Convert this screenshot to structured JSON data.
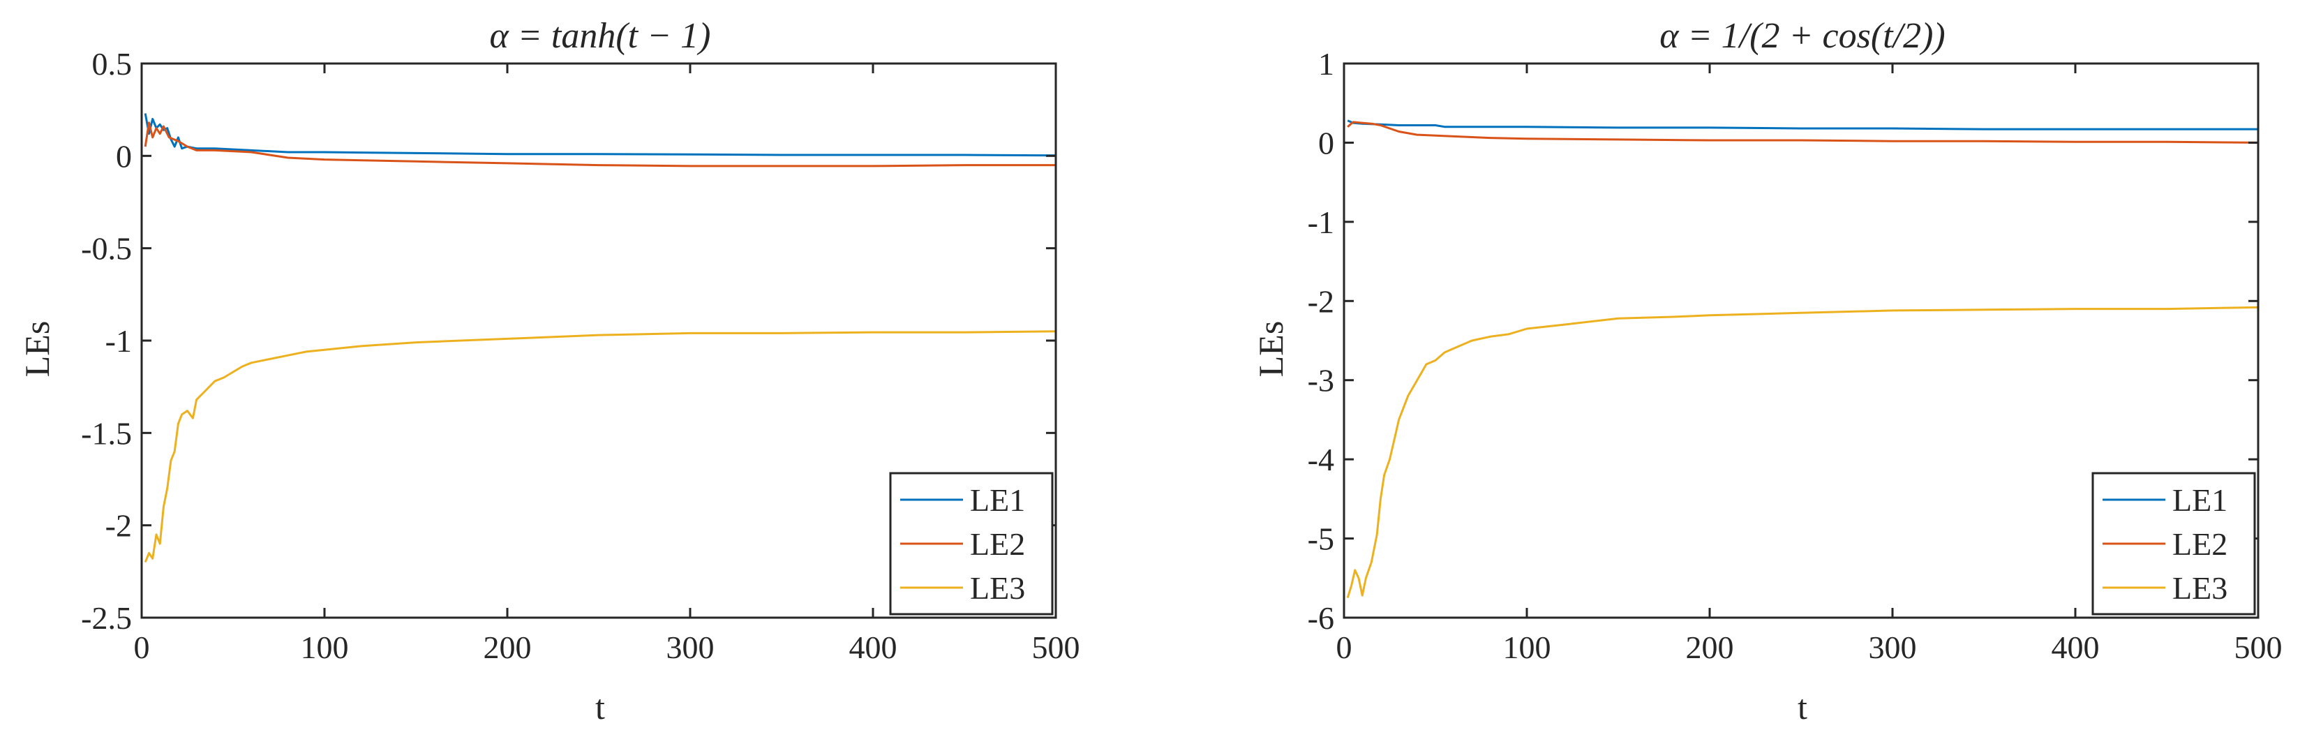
{
  "chart_data": [
    {
      "type": "line",
      "title": "α = tanh(t − 1)",
      "xlabel": "t",
      "ylabel": "LEs",
      "xlim": [
        0,
        500
      ],
      "ylim": [
        -2.5,
        0.5
      ],
      "xticks": [
        0,
        100,
        200,
        300,
        400,
        500
      ],
      "xtick_labels": [
        "0",
        "100",
        "200",
        "300",
        "400",
        "500"
      ],
      "yticks": [
        0.5,
        0,
        -0.5,
        -1,
        -1.5,
        -2,
        -2.5
      ],
      "ytick_labels": [
        "0.5",
        "0",
        "-0.5",
        "-1",
        "-1.5",
        "-2",
        "-2.5"
      ],
      "legend_position": "bottom-right",
      "series": [
        {
          "name": "LE1",
          "color": "#0072BD",
          "x": [
            2,
            4,
            6,
            8,
            10,
            12,
            14,
            16,
            18,
            20,
            22,
            25,
            30,
            40,
            60,
            80,
            100,
            150,
            200,
            250,
            300,
            350,
            400,
            450,
            500
          ],
          "y": [
            0.23,
            0.12,
            0.2,
            0.15,
            0.17,
            0.14,
            0.15,
            0.09,
            0.05,
            0.1,
            0.04,
            0.05,
            0.04,
            0.04,
            0.03,
            0.02,
            0.02,
            0.015,
            0.01,
            0.01,
            0.008,
            0.005,
            0.005,
            0.005,
            0.002
          ]
        },
        {
          "name": "LE2",
          "color": "#D95319",
          "x": [
            2,
            4,
            6,
            8,
            10,
            12,
            15,
            20,
            25,
            30,
            40,
            60,
            80,
            100,
            150,
            200,
            250,
            300,
            350,
            400,
            450,
            500
          ],
          "y": [
            0.05,
            0.18,
            0.1,
            0.15,
            0.12,
            0.16,
            0.1,
            0.08,
            0.05,
            0.03,
            0.03,
            0.02,
            -0.01,
            -0.02,
            -0.03,
            -0.04,
            -0.05,
            -0.055,
            -0.055,
            -0.055,
            -0.05,
            -0.05
          ]
        },
        {
          "name": "LE3",
          "color": "#EDB120",
          "x": [
            2,
            4,
            6,
            8,
            10,
            12,
            14,
            16,
            18,
            20,
            22,
            25,
            28,
            30,
            35,
            40,
            45,
            50,
            55,
            60,
            70,
            80,
            90,
            100,
            120,
            150,
            200,
            250,
            300,
            350,
            400,
            450,
            500
          ],
          "y": [
            -2.2,
            -2.15,
            -2.18,
            -2.05,
            -2.1,
            -1.9,
            -1.8,
            -1.65,
            -1.6,
            -1.45,
            -1.4,
            -1.38,
            -1.42,
            -1.32,
            -1.27,
            -1.22,
            -1.2,
            -1.17,
            -1.14,
            -1.12,
            -1.1,
            -1.08,
            -1.06,
            -1.05,
            -1.03,
            -1.01,
            -0.99,
            -0.97,
            -0.96,
            -0.96,
            -0.955,
            -0.955,
            -0.95
          ]
        }
      ]
    },
    {
      "type": "line",
      "title": "α = 1/(2 + cos(t/2))",
      "xlabel": "t",
      "ylabel": "LEs",
      "xlim": [
        0,
        500
      ],
      "ylim": [
        -6,
        1
      ],
      "xticks": [
        0,
        100,
        200,
        300,
        400,
        500
      ],
      "xtick_labels": [
        "0",
        "100",
        "200",
        "300",
        "400",
        "500"
      ],
      "yticks": [
        1,
        0,
        -1,
        -2,
        -3,
        -4,
        -5,
        -6
      ],
      "ytick_labels": [
        "1",
        "0",
        "-1",
        "-2",
        "-3",
        "-4",
        "-5",
        "-6"
      ],
      "legend_position": "bottom-right",
      "series": [
        {
          "name": "LE1",
          "color": "#0072BD",
          "x": [
            2,
            5,
            10,
            20,
            30,
            50,
            55,
            80,
            100,
            150,
            200,
            250,
            300,
            350,
            400,
            450,
            500
          ],
          "y": [
            0.28,
            0.25,
            0.24,
            0.23,
            0.22,
            0.22,
            0.2,
            0.2,
            0.2,
            0.19,
            0.19,
            0.18,
            0.18,
            0.17,
            0.17,
            0.17,
            0.17
          ]
        },
        {
          "name": "LE2",
          "color": "#D95319",
          "x": [
            2,
            5,
            10,
            15,
            20,
            25,
            30,
            40,
            60,
            80,
            100,
            150,
            200,
            250,
            300,
            350,
            400,
            450,
            500
          ],
          "y": [
            0.2,
            0.26,
            0.25,
            0.24,
            0.22,
            0.18,
            0.14,
            0.1,
            0.08,
            0.06,
            0.05,
            0.04,
            0.03,
            0.03,
            0.02,
            0.02,
            0.01,
            0.01,
            0.0
          ]
        },
        {
          "name": "LE3",
          "color": "#EDB120",
          "x": [
            2,
            4,
            6,
            8,
            10,
            12,
            15,
            18,
            20,
            22,
            25,
            28,
            30,
            35,
            40,
            45,
            50,
            55,
            60,
            70,
            80,
            90,
            100,
            120,
            150,
            180,
            200,
            250,
            300,
            350,
            400,
            450,
            500
          ],
          "y": [
            -5.75,
            -5.6,
            -5.4,
            -5.5,
            -5.72,
            -5.5,
            -5.3,
            -4.95,
            -4.5,
            -4.2,
            -4.0,
            -3.7,
            -3.5,
            -3.2,
            -3.0,
            -2.8,
            -2.75,
            -2.65,
            -2.6,
            -2.5,
            -2.45,
            -2.42,
            -2.35,
            -2.3,
            -2.22,
            -2.2,
            -2.18,
            -2.15,
            -2.12,
            -2.11,
            -2.1,
            -2.1,
            -2.08
          ]
        }
      ]
    }
  ]
}
